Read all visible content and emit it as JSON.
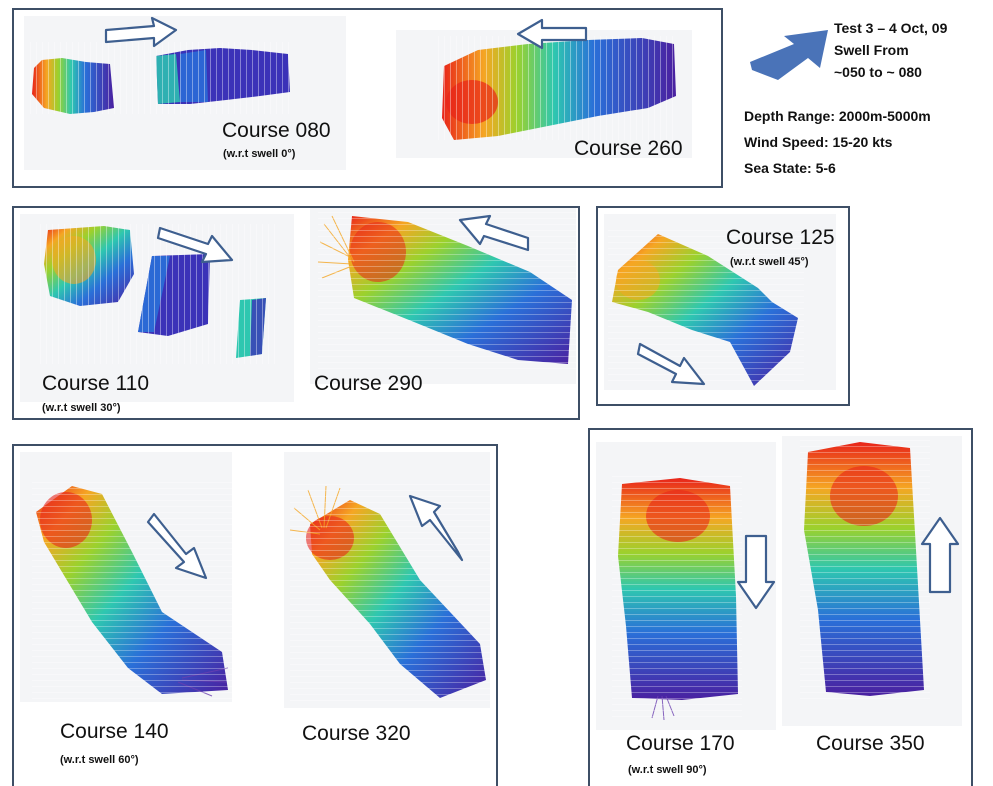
{
  "test_info": {
    "line1": "Test 3 – 4 Oct, 09",
    "line2": "Swell From",
    "line3": "~050 to ~ 080"
  },
  "conditions": {
    "depth_range": "Depth Range: 2000m-5000m",
    "wind_speed": "Wind Speed:    15-20 kts",
    "sea_state": "Sea State: 5-6"
  },
  "panels": [
    {
      "courses": [
        {
          "label": "Course 080",
          "sub": "(w.r.t swell 0°)"
        },
        {
          "label": "Course 260",
          "sub": ""
        }
      ]
    },
    {
      "courses": [
        {
          "label": "Course 110",
          "sub": "(w.r.t swell 30°)"
        },
        {
          "label": "Course 290",
          "sub": ""
        }
      ]
    },
    {
      "courses": [
        {
          "label": "Course 125",
          "sub": "(w.r.t swell 45°)"
        }
      ]
    },
    {
      "courses": [
        {
          "label": "Course 140",
          "sub": "(w.r.t swell 60°)"
        },
        {
          "label": "Course 320",
          "sub": ""
        }
      ]
    },
    {
      "courses": [
        {
          "label": "Course 170",
          "sub": "(w.r.t swell 90°)"
        },
        {
          "label": "Course 350",
          "sub": ""
        }
      ]
    }
  ],
  "colors": {
    "panel_border": "#3e4f66",
    "swell_arrow": "#4a73b8",
    "course_arrow": "#3e5f8f",
    "depth_shallow": "#e8241a",
    "depth_mid": "#2ec7b0",
    "depth_deep": "#4a20a0"
  }
}
